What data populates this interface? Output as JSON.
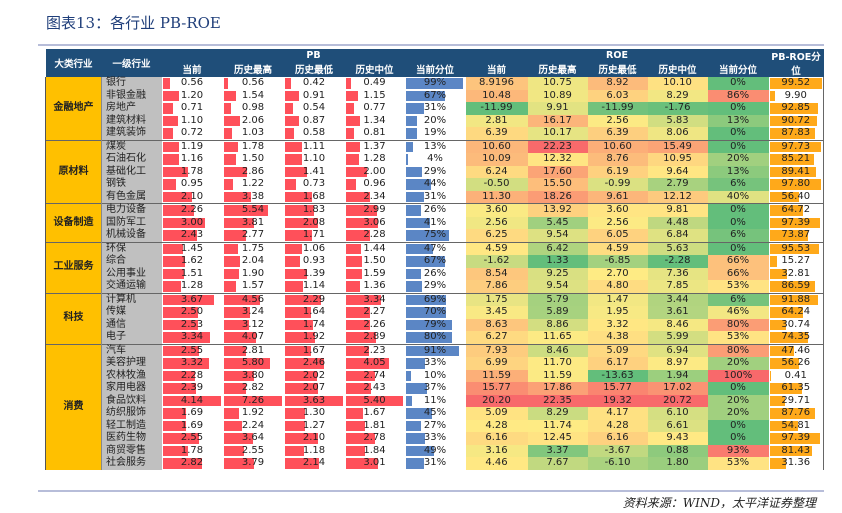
{
  "title": "图表13：各行业 PB-ROE",
  "source": "资料来源：WIND，太平洋证券整理",
  "colors": {
    "header_bg": "#1F4E79",
    "group_bg": "#FFC000",
    "industry_bg": "#C0C0C0",
    "pb_bar": "#FF505A",
    "pct_bar": "#5B86C5",
    "pbroe_bar": "#FFA91A",
    "heat_low": "#63BE7B",
    "heat_mid": "#FFEB84",
    "heat_high": "#F8696B"
  },
  "header": {
    "group": "大类行业",
    "industry": "一级行业",
    "pb": "PB",
    "roe": "ROE",
    "pbroe": "PB-ROE分位",
    "sub": [
      "当前",
      "历史最高",
      "历史最低",
      "历史中位",
      "当前分位"
    ]
  },
  "groups": [
    {
      "name": "金融地产",
      "rows": [
        [
          "银行",
          "0.56",
          "0.56",
          "0.42",
          "0.49",
          "99%",
          "8.9196",
          "10.75",
          "8.92",
          "10.10",
          "0%",
          "99.52"
        ],
        [
          "非银金融",
          "1.20",
          "1.54",
          "0.91",
          "1.15",
          "67%",
          "10.48",
          "10.89",
          "6.03",
          "8.29",
          "86%",
          "9.90"
        ],
        [
          "房地产",
          "0.71",
          "0.98",
          "0.54",
          "0.77",
          "31%",
          "-11.99",
          "9.91",
          "-11.99",
          "-1.76",
          "0%",
          "92.85"
        ],
        [
          "建筑材料",
          "1.10",
          "2.06",
          "0.87",
          "1.34",
          "20%",
          "2.81",
          "16.17",
          "2.56",
          "5.83",
          "13%",
          "90.72"
        ],
        [
          "建筑装饰",
          "0.72",
          "1.03",
          "0.58",
          "0.81",
          "19%",
          "6.39",
          "10.17",
          "6.39",
          "8.06",
          "0%",
          "87.83"
        ]
      ]
    },
    {
      "name": "原材料",
      "rows": [
        [
          "煤炭",
          "1.19",
          "1.78",
          "1.11",
          "1.37",
          "13%",
          "10.60",
          "22.23",
          "10.60",
          "15.49",
          "0%",
          "97.73"
        ],
        [
          "石油石化",
          "1.16",
          "1.50",
          "1.10",
          "1.28",
          "4%",
          "10.09",
          "12.32",
          "8.76",
          "10.95",
          "20%",
          "85.21"
        ],
        [
          "基础化工",
          "1.78",
          "2.86",
          "1.41",
          "2.00",
          "29%",
          "6.24",
          "17.60",
          "6.19",
          "9.64",
          "13%",
          "89.41"
        ],
        [
          "钢铁",
          "0.95",
          "1.22",
          "0.73",
          "0.96",
          "44%",
          "-0.50",
          "15.50",
          "-0.99",
          "2.79",
          "6%",
          "97.80"
        ],
        [
          "有色金属",
          "2.10",
          "3.38",
          "1.68",
          "2.34",
          "31%",
          "11.30",
          "18.26",
          "9.61",
          "12.12",
          "40%",
          "56.40"
        ]
      ]
    },
    {
      "name": "设备制造",
      "rows": [
        [
          "电力设备",
          "2.26",
          "5.54",
          "1.83",
          "2.99",
          "26%",
          "3.60",
          "13.92",
          "3.60",
          "9.81",
          "0%",
          "64.72"
        ],
        [
          "国防军工",
          "3.00",
          "3.81",
          "2.08",
          "3.06",
          "41%",
          "2.56",
          "5.45",
          "2.56",
          "4.48",
          "0%",
          "97.39"
        ],
        [
          "机械设备",
          "2.43",
          "2.77",
          "1.71",
          "2.28",
          "75%",
          "6.25",
          "9.54",
          "6.05",
          "6.84",
          "6%",
          "73.87"
        ]
      ]
    },
    {
      "name": "工业服务",
      "rows": [
        [
          "环保",
          "1.45",
          "1.75",
          "1.06",
          "1.44",
          "47%",
          "4.59",
          "6.42",
          "4.59",
          "5.63",
          "0%",
          "95.53"
        ],
        [
          "综合",
          "1.62",
          "2.04",
          "0.93",
          "1.50",
          "67%",
          "-1.62",
          "1.33",
          "-6.85",
          "-2.28",
          "66%",
          "15.27"
        ],
        [
          "公用事业",
          "1.51",
          "1.90",
          "1.39",
          "1.59",
          "26%",
          "8.54",
          "9.25",
          "2.70",
          "7.36",
          "66%",
          "32.81"
        ],
        [
          "交通运输",
          "1.28",
          "1.57",
          "1.14",
          "1.36",
          "29%",
          "7.86",
          "9.54",
          "4.80",
          "7.85",
          "53%",
          "86.59"
        ]
      ]
    },
    {
      "name": "科技",
      "rows": [
        [
          "计算机",
          "3.67",
          "4.56",
          "2.29",
          "3.34",
          "69%",
          "1.75",
          "5.79",
          "1.47",
          "3.44",
          "6%",
          "91.88"
        ],
        [
          "传媒",
          "2.50",
          "3.24",
          "1.64",
          "2.27",
          "70%",
          "3.45",
          "5.89",
          "1.95",
          "3.61",
          "46%",
          "64.24"
        ],
        [
          "通信",
          "2.53",
          "3.12",
          "1.74",
          "2.26",
          "79%",
          "8.63",
          "8.86",
          "3.32",
          "8.46",
          "80%",
          "30.74"
        ],
        [
          "电子",
          "3.34",
          "4.07",
          "1.92",
          "2.89",
          "80%",
          "6.27",
          "11.65",
          "4.38",
          "5.99",
          "53%",
          "74.35"
        ]
      ]
    },
    {
      "name": "消费",
      "rows": [
        [
          "汽车",
          "2.55",
          "2.81",
          "1.67",
          "2.23",
          "91%",
          "7.93",
          "8.46",
          "5.09",
          "6.94",
          "80%",
          "47.46"
        ],
        [
          "美容护理",
          "3.32",
          "5.80",
          "2.46",
          "4.05",
          "33%",
          "6.99",
          "11.70",
          "6.17",
          "8.97",
          "20%",
          "56.26"
        ],
        [
          "农林牧渔",
          "2.28",
          "3.80",
          "2.02",
          "2.74",
          "10%",
          "11.59",
          "11.59",
          "-13.63",
          "1.94",
          "100%",
          "0.41"
        ],
        [
          "家用电器",
          "2.39",
          "2.82",
          "2.07",
          "2.43",
          "37%",
          "15.77",
          "17.86",
          "15.77",
          "17.02",
          "0%",
          "61.35"
        ],
        [
          "食品饮料",
          "4.14",
          "7.26",
          "3.63",
          "5.40",
          "11%",
          "20.20",
          "22.35",
          "19.32",
          "20.72",
          "20%",
          "29.71"
        ],
        [
          "纺织服饰",
          "1.69",
          "1.92",
          "1.30",
          "1.67",
          "45%",
          "5.09",
          "8.29",
          "4.17",
          "6.10",
          "20%",
          "87.76"
        ],
        [
          "轻工制造",
          "1.69",
          "2.24",
          "1.27",
          "1.81",
          "27%",
          "4.28",
          "11.74",
          "4.28",
          "6.61",
          "0%",
          "54.81"
        ],
        [
          "医药生物",
          "2.55",
          "3.64",
          "2.10",
          "2.78",
          "33%",
          "6.16",
          "12.45",
          "6.16",
          "9.43",
          "0%",
          "97.39"
        ],
        [
          "商贸零售",
          "1.78",
          "2.55",
          "1.18",
          "1.84",
          "49%",
          "3.16",
          "3.37",
          "-3.67",
          "0.88",
          "93%",
          "81.43"
        ],
        [
          "社会服务",
          "2.82",
          "3.79",
          "2.14",
          "3.01",
          "31%",
          "4.46",
          "7.67",
          "-6.10",
          "1.80",
          "53%",
          "31.36"
        ]
      ]
    }
  ]
}
